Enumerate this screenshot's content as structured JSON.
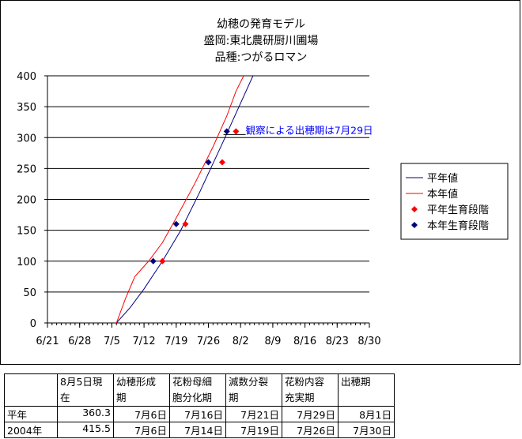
{
  "chart_data": {
    "type": "line",
    "title": [
      "幼穂の発育モデル",
      "盛岡:東北農研厨川圃場",
      "品種:つがるロマン"
    ],
    "x_tick_labels": [
      "6/21",
      "6/28",
      "7/5",
      "7/12",
      "7/19",
      "7/26",
      "8/2",
      "8/9",
      "8/16",
      "8/23",
      "8/30"
    ],
    "y_ticks": [
      0,
      50,
      100,
      150,
      200,
      250,
      300,
      350,
      400
    ],
    "ylim": [
      0,
      400
    ],
    "xlim": [
      "6/21",
      "8/30"
    ],
    "grid": "horizontal",
    "legend_placement": "right",
    "series": [
      {
        "name": "平年値",
        "kind": "line",
        "color": "#000080",
        "points": [
          [
            "7/6",
            0
          ],
          [
            "7/9",
            25
          ],
          [
            "7/12",
            55
          ],
          [
            "7/16",
            100
          ],
          [
            "7/20",
            150
          ],
          [
            "7/24",
            210
          ],
          [
            "7/29",
            290
          ],
          [
            "8/5",
            405
          ]
        ]
      },
      {
        "name": "本年値",
        "kind": "line",
        "color": "#ff0000",
        "points": [
          [
            "7/6",
            0
          ],
          [
            "7/8",
            40
          ],
          [
            "7/10",
            75
          ],
          [
            "7/13",
            100
          ],
          [
            "7/16",
            130
          ],
          [
            "7/19",
            170
          ],
          [
            "7/23",
            225
          ],
          [
            "7/27",
            285
          ],
          [
            "7/30",
            335
          ],
          [
            "8/1",
            375
          ],
          [
            "8/3",
            405
          ]
        ]
      },
      {
        "name": "平年生育段階",
        "kind": "marker",
        "color": "#ff0000",
        "points": [
          [
            "7/16",
            100
          ],
          [
            "7/21",
            160
          ],
          [
            "7/29",
            260
          ],
          [
            "8/1",
            310
          ]
        ]
      },
      {
        "name": "本年生育段階",
        "kind": "marker",
        "color": "#000080",
        "points": [
          [
            "7/14",
            100
          ],
          [
            "7/19",
            160
          ],
          [
            "7/26",
            260
          ],
          [
            "7/30",
            310
          ]
        ]
      }
    ],
    "annotation": {
      "text": "観察による出穂期は7月29日",
      "color": "#0000ff",
      "at": [
        "7/31",
        305
      ]
    }
  },
  "table": {
    "headers": [
      "",
      "8月5日現在",
      "幼穂形成期",
      "花粉母細胞分化期",
      "減数分裂期",
      "花粉内容充実期",
      "出穂期"
    ],
    "header_lines": [
      [
        ""
      ],
      [
        "8月5日現",
        "在"
      ],
      [
        "幼穂形成",
        "期"
      ],
      [
        "花粉母細",
        "胞分化期"
      ],
      [
        "減数分裂",
        "期"
      ],
      [
        "花粉内容",
        "充実期"
      ],
      [
        "出穂期"
      ]
    ],
    "rows": [
      [
        "平年",
        "360.3",
        "7月6日",
        "7月16日",
        "7月21日",
        "7月29日",
        "8月1日"
      ],
      [
        "2004年",
        "415.5",
        "7月6日",
        "7月14日",
        "7月19日",
        "7月26日",
        "7月30日"
      ]
    ]
  }
}
